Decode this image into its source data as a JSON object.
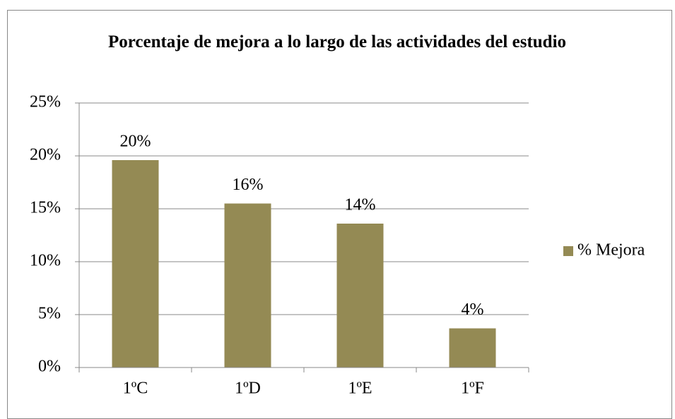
{
  "chart_data": {
    "type": "bar",
    "title": "Porcentaje de mejora a lo largo de las actividades del estudio",
    "categories": [
      "1ºC",
      "1ºD",
      "1ºE",
      "1ºF"
    ],
    "series": [
      {
        "name": "% Mejora",
        "color": "#948a54",
        "values": [
          19.6,
          15.5,
          13.6,
          3.7
        ],
        "value_labels": [
          "20%",
          "16%",
          "14%",
          "4%"
        ]
      }
    ],
    "ylim": [
      0,
      25
    ],
    "yticks": [
      {
        "value": 0,
        "label": "0%"
      },
      {
        "value": 5,
        "label": "5%"
      },
      {
        "value": 10,
        "label": "10%"
      },
      {
        "value": 15,
        "label": "15%"
      },
      {
        "value": 20,
        "label": "20%"
      },
      {
        "value": 25,
        "label": "25%"
      }
    ],
    "grid": true,
    "legend": "right"
  }
}
